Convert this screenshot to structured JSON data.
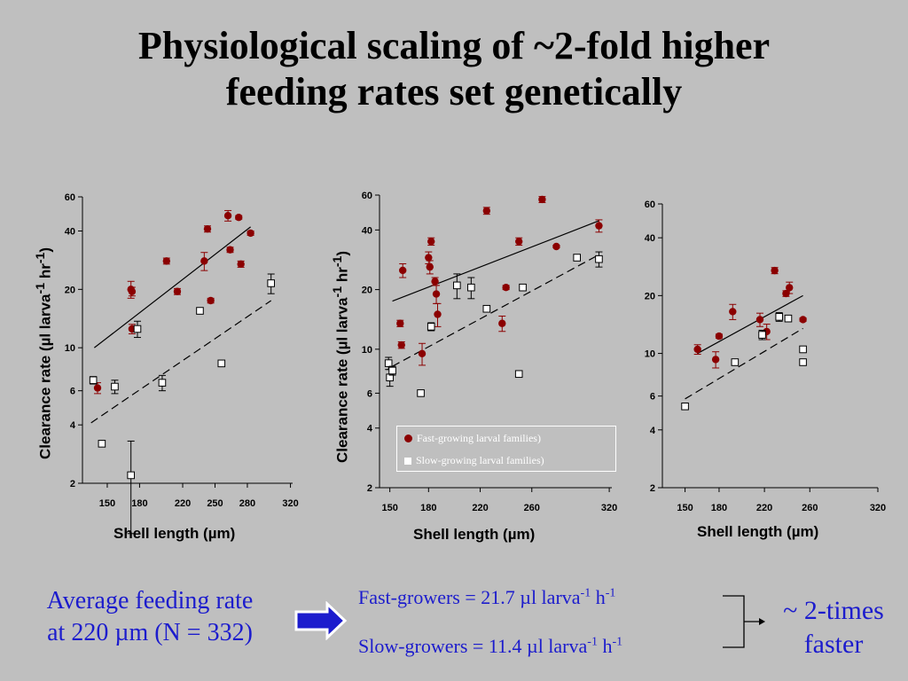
{
  "title_line1": "Physiological scaling of ~2-fold higher",
  "title_line2": "feeding rates set genetically",
  "colors": {
    "fast": "#8b0000",
    "slow": "#ffffff",
    "blue_text": "#1c1ccd",
    "background": "#bfbfbf"
  },
  "chart_data": [
    {
      "type": "scatter",
      "x_scale": "linear",
      "y_scale": "log",
      "xlim": [
        127,
        322
      ],
      "ylim": [
        2,
        60
      ],
      "x_ticks": [
        150,
        180,
        220,
        250,
        280,
        320
      ],
      "y_ticks": [
        2,
        4,
        6,
        10,
        20,
        40,
        60
      ],
      "xlabel": "Shell length (µm)",
      "ylabel_main": "Clearance rate (µl larva",
      "ylabel_sup1": "-1",
      "ylabel_mid": " hr",
      "ylabel_sup2": "-1",
      "ylabel_end": ")",
      "series": [
        {
          "key": "fast",
          "marker": "circle",
          "points": [
            [
              141,
              6.2,
              0.4
            ],
            [
              172,
              20,
              2
            ],
            [
              173,
              19.5,
              1
            ],
            [
              173,
              12.5,
              0.7
            ],
            [
              205,
              28,
              1
            ],
            [
              215,
              19.5,
              0.7
            ],
            [
              240,
              28,
              3
            ],
            [
              243,
              41,
              1.5
            ],
            [
              246,
              17.5,
              0.5
            ],
            [
              262,
              48,
              3
            ],
            [
              264,
              32,
              1
            ],
            [
              272,
              47,
              1
            ],
            [
              274,
              27,
              1
            ],
            [
              283,
              39,
              1
            ]
          ]
        },
        {
          "key": "slow",
          "marker": "square",
          "points": [
            [
              137,
              6.8,
              0.3
            ],
            [
              145,
              3.2,
              0.1
            ],
            [
              157,
              6.3,
              0.5
            ],
            [
              172,
              2.2,
              1.1
            ],
            [
              178,
              12.5,
              1.2
            ],
            [
              201,
              6.6,
              0.6
            ],
            [
              236,
              15.5,
              0.4
            ],
            [
              256,
              8.3,
              0.3
            ],
            [
              302,
              21.5,
              2.5
            ]
          ]
        }
      ],
      "regression": {
        "fast": [
          [
            138,
            10
          ],
          [
            283,
            42
          ]
        ],
        "slow": [
          [
            135,
            4.1
          ],
          [
            302,
            17.5
          ]
        ]
      }
    },
    {
      "type": "scatter",
      "x_scale": "linear",
      "y_scale": "log",
      "xlim": [
        142,
        322
      ],
      "ylim": [
        2,
        60
      ],
      "x_ticks": [
        150,
        180,
        220,
        260,
        320
      ],
      "y_ticks": [
        2,
        4,
        6,
        10,
        20,
        40,
        60
      ],
      "xlabel": "Shell length (µm)",
      "ylabel_main": "Clearance rate (µl larva",
      "ylabel_sup1": "-1",
      "ylabel_mid": " hr",
      "ylabel_sup2": "-1",
      "ylabel_end": ")",
      "legend": {
        "fast": "Fast-growing larval families)",
        "slow": "Slow-growing larval families)"
      },
      "series": [
        {
          "key": "fast",
          "marker": "circle",
          "points": [
            [
              158,
              13.5,
              0.5
            ],
            [
              159,
              10.5,
              0.4
            ],
            [
              160,
              25,
              2
            ],
            [
              175,
              9.5,
              1.2
            ],
            [
              180,
              29,
              2
            ],
            [
              181,
              26,
              2
            ],
            [
              182,
              35,
              1.5
            ],
            [
              185,
              22,
              1
            ],
            [
              186,
              19,
              2
            ],
            [
              187,
              15,
              2
            ],
            [
              225,
              50,
              2
            ],
            [
              237,
              13.5,
              1.2
            ],
            [
              240,
              20.5,
              0.5
            ],
            [
              250,
              35,
              1.5
            ],
            [
              268,
              57,
              2
            ],
            [
              279,
              33,
              0.5
            ],
            [
              312,
              42,
              3
            ]
          ]
        },
        {
          "key": "slow",
          "marker": "square",
          "points": [
            [
              149,
              8.5,
              0.6
            ],
            [
              150,
              7.2,
              0.7
            ],
            [
              152,
              7.8,
              0.4
            ],
            [
              174,
              6,
              0.2
            ],
            [
              182,
              13,
              0.6
            ],
            [
              202,
              21,
              3
            ],
            [
              213,
              20.5,
              2.5
            ],
            [
              225,
              16,
              0.6
            ],
            [
              250,
              7.5,
              0.2
            ],
            [
              253,
              20.5,
              0.6
            ],
            [
              295,
              29,
              1
            ],
            [
              312,
              28.5,
              2.5
            ]
          ]
        }
      ],
      "regression": {
        "fast": [
          [
            152,
            17.5
          ],
          [
            312,
            44.5
          ]
        ],
        "slow": [
          [
            152,
            8.2
          ],
          [
            312,
            30
          ]
        ]
      }
    },
    {
      "type": "scatter",
      "x_scale": "linear",
      "y_scale": "log",
      "xlim": [
        130,
        320
      ],
      "ylim": [
        2,
        60
      ],
      "x_ticks": [
        150,
        180,
        220,
        260,
        320
      ],
      "y_ticks": [
        2,
        4,
        6,
        10,
        20,
        40,
        60
      ],
      "xlabel": "Shell length (µm)",
      "series": [
        {
          "key": "fast",
          "marker": "circle",
          "points": [
            [
              161,
              10.5,
              0.6
            ],
            [
              177,
              9.3,
              0.9
            ],
            [
              180,
              12.3,
              0.3
            ],
            [
              192,
              16.5,
              1.5
            ],
            [
              216,
              15,
              1.2
            ],
            [
              222,
              13,
              1.2
            ],
            [
              229,
              27,
              1
            ],
            [
              239,
              20.5,
              0.7
            ],
            [
              242,
              22,
              1.5
            ],
            [
              254,
              15,
              0.3
            ]
          ]
        },
        {
          "key": "slow",
          "marker": "square",
          "points": [
            [
              150,
              5.3,
              0.15
            ],
            [
              194,
              9,
              0.2
            ],
            [
              218,
              12.5,
              0.7
            ],
            [
              233,
              15.5,
              0.8
            ],
            [
              241,
              15.2,
              0.6
            ],
            [
              254,
              10.5,
              0.2
            ],
            [
              254,
              9,
              0.2
            ]
          ]
        }
      ],
      "regression": {
        "fast": [
          [
            161,
            10
          ],
          [
            254,
            20
          ]
        ],
        "slow": [
          [
            150,
            5.8
          ],
          [
            254,
            13.5
          ]
        ]
      }
    }
  ],
  "avg_line1": "Average feeding rate",
  "avg_line2": "at 220 µm (N = 332)",
  "fast_text": "Fast-growers = 21.7 µl larva",
  "slow_text": "Slow-growers = 11.4 µl larva",
  "sup_minus1": "-1",
  "unit_h": " h",
  "conclusion_line1": "~ 2-times",
  "conclusion_line2": "faster"
}
